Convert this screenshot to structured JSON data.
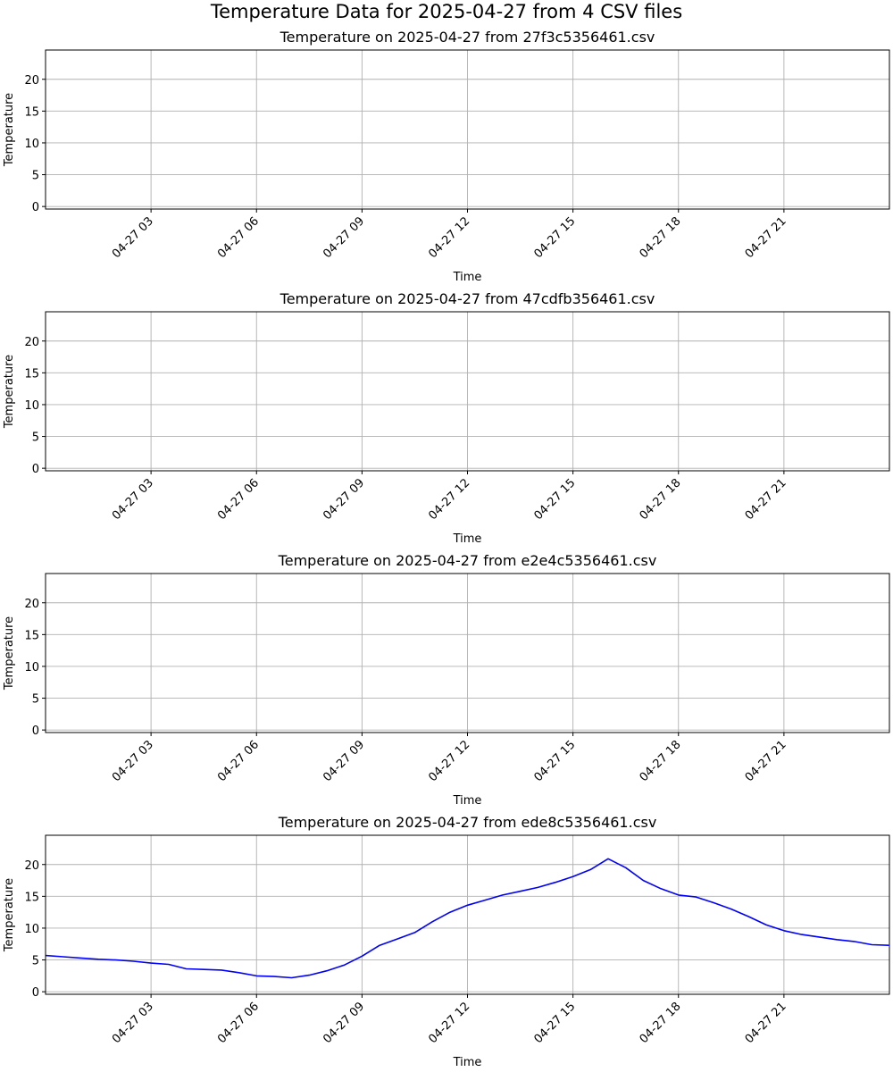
{
  "figure": {
    "suptitle": "Temperature Data for 2025-04-27 from 4 CSV files"
  },
  "chart_data": [
    {
      "type": "line",
      "title": "Temperature on 2025-04-27 from 27f3c5356461.csv",
      "xlabel": "Time",
      "ylabel": "Temperature",
      "xlim": [
        0,
        24
      ],
      "ylim": [
        -0.4,
        24.6
      ],
      "x_ticks": [
        3,
        6,
        9,
        12,
        15,
        18,
        21
      ],
      "x_tick_labels": [
        "04-27 03",
        "04-27 06",
        "04-27 09",
        "04-27 12",
        "04-27 15",
        "04-27 18",
        "04-27 21"
      ],
      "y_ticks": [
        0,
        5,
        10,
        15,
        20
      ],
      "y_tick_labels": [
        "0",
        "5",
        "10",
        "15",
        "20"
      ],
      "grid": true,
      "series": []
    },
    {
      "type": "line",
      "title": "Temperature on 2025-04-27 from 47cdfb356461.csv",
      "xlabel": "Time",
      "ylabel": "Temperature",
      "xlim": [
        0,
        24
      ],
      "ylim": [
        -0.4,
        24.6
      ],
      "x_ticks": [
        3,
        6,
        9,
        12,
        15,
        18,
        21
      ],
      "x_tick_labels": [
        "04-27 03",
        "04-27 06",
        "04-27 09",
        "04-27 12",
        "04-27 15",
        "04-27 18",
        "04-27 21"
      ],
      "y_ticks": [
        0,
        5,
        10,
        15,
        20
      ],
      "y_tick_labels": [
        "0",
        "5",
        "10",
        "15",
        "20"
      ],
      "grid": true,
      "series": []
    },
    {
      "type": "line",
      "title": "Temperature on 2025-04-27 from e2e4c5356461.csv",
      "xlabel": "Time",
      "ylabel": "Temperature",
      "xlim": [
        0,
        24
      ],
      "ylim": [
        -0.4,
        24.6
      ],
      "x_ticks": [
        3,
        6,
        9,
        12,
        15,
        18,
        21
      ],
      "x_tick_labels": [
        "04-27 03",
        "04-27 06",
        "04-27 09",
        "04-27 12",
        "04-27 15",
        "04-27 18",
        "04-27 21"
      ],
      "y_ticks": [
        0,
        5,
        10,
        15,
        20
      ],
      "y_tick_labels": [
        "0",
        "5",
        "10",
        "15",
        "20"
      ],
      "grid": true,
      "series": []
    },
    {
      "type": "line",
      "title": "Temperature on 2025-04-27 from ede8c5356461.csv",
      "xlabel": "Time",
      "ylabel": "Temperature",
      "xlim": [
        0,
        24
      ],
      "ylim": [
        -0.4,
        24.6
      ],
      "x_ticks": [
        3,
        6,
        9,
        12,
        15,
        18,
        21
      ],
      "x_tick_labels": [
        "04-27 03",
        "04-27 06",
        "04-27 09",
        "04-27 12",
        "04-27 15",
        "04-27 18",
        "04-27 21"
      ],
      "y_ticks": [
        0,
        5,
        10,
        15,
        20
      ],
      "y_tick_labels": [
        "0",
        "5",
        "10",
        "15",
        "20"
      ],
      "grid": true,
      "series": [
        {
          "color": "#0000ff",
          "x": [
            "2025-04-27 00:00",
            "2025-04-27 00:30",
            "2025-04-27 01:00",
            "2025-04-27 01:30",
            "2025-04-27 02:00",
            "2025-04-27 02:30",
            "2025-04-27 03:00",
            "2025-04-27 03:30",
            "2025-04-27 04:00",
            "2025-04-27 04:30",
            "2025-04-27 05:00",
            "2025-04-27 05:30",
            "2025-04-27 06:00",
            "2025-04-27 06:30",
            "2025-04-27 07:00",
            "2025-04-27 07:30",
            "2025-04-27 08:00",
            "2025-04-27 08:30",
            "2025-04-27 09:00",
            "2025-04-27 09:30",
            "2025-04-27 10:00",
            "2025-04-27 10:30",
            "2025-04-27 11:00",
            "2025-04-27 11:30",
            "2025-04-27 12:00",
            "2025-04-27 12:30",
            "2025-04-27 13:00",
            "2025-04-27 13:30",
            "2025-04-27 14:00",
            "2025-04-27 14:30",
            "2025-04-27 15:00",
            "2025-04-27 15:30",
            "2025-04-27 16:00",
            "2025-04-27 16:30",
            "2025-04-27 17:00",
            "2025-04-27 17:30",
            "2025-04-27 18:00",
            "2025-04-27 18:30",
            "2025-04-27 19:00",
            "2025-04-27 19:30",
            "2025-04-27 20:00",
            "2025-04-27 20:30",
            "2025-04-27 21:00",
            "2025-04-27 21:30",
            "2025-04-27 22:00",
            "2025-04-27 22:30",
            "2025-04-27 23:00",
            "2025-04-27 23:30",
            "2025-04-27 23:59"
          ],
          "y": [
            5.7,
            5.5,
            5.3,
            5.1,
            5.0,
            4.8,
            4.5,
            4.3,
            3.6,
            3.5,
            3.4,
            3.0,
            2.5,
            2.4,
            2.2,
            2.6,
            3.3,
            4.2,
            5.6,
            7.3,
            8.3,
            9.3,
            11.0,
            12.5,
            13.6,
            14.4,
            15.2,
            15.8,
            16.4,
            17.2,
            18.1,
            19.2,
            20.9,
            19.5,
            17.5,
            16.2,
            15.2,
            14.9,
            14.0,
            13.0,
            11.8,
            10.5,
            9.6,
            9.0,
            8.6,
            8.2,
            7.9,
            7.4,
            7.3
          ]
        }
      ]
    }
  ]
}
